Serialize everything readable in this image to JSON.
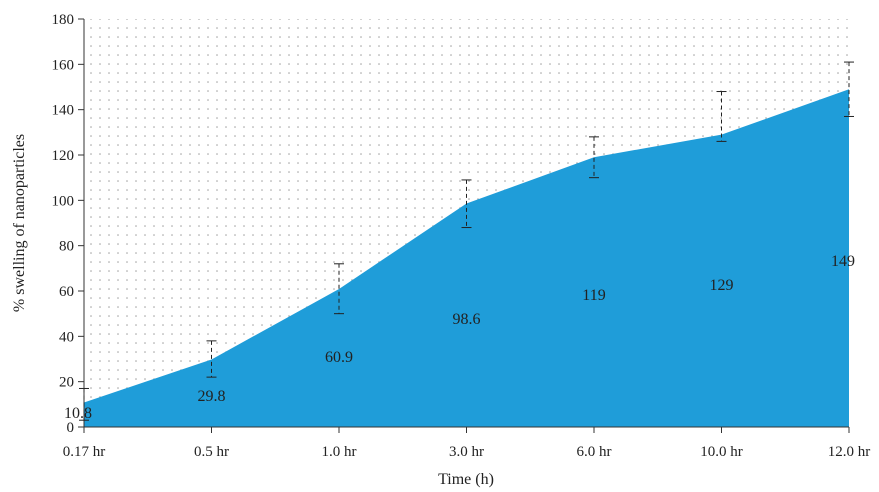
{
  "chart_data": {
    "type": "area",
    "categories": [
      "0.17 hr",
      "0.5 hr",
      "1.0 hr",
      "3.0 hr",
      "6.0 hr",
      "10.0 hr",
      "12.0 hr"
    ],
    "values": [
      10.8,
      29.8,
      60.9,
      98.6,
      119,
      129,
      149
    ],
    "value_labels": [
      "10.8",
      "29.8",
      "60.9",
      "98.6",
      "119",
      "129",
      "149"
    ],
    "error_low": [
      3,
      22,
      50,
      88,
      110,
      126,
      137
    ],
    "error_high": [
      17,
      38,
      72,
      109,
      128,
      148,
      161
    ],
    "xlabel": "Time (h)",
    "ylabel": "% swelling of nanoparticles",
    "ylim": [
      0,
      180
    ],
    "yticks": [
      0,
      20,
      40,
      60,
      80,
      100,
      120,
      140,
      160,
      180
    ],
    "grid": true,
    "fill_color": "#1f9dd9"
  }
}
